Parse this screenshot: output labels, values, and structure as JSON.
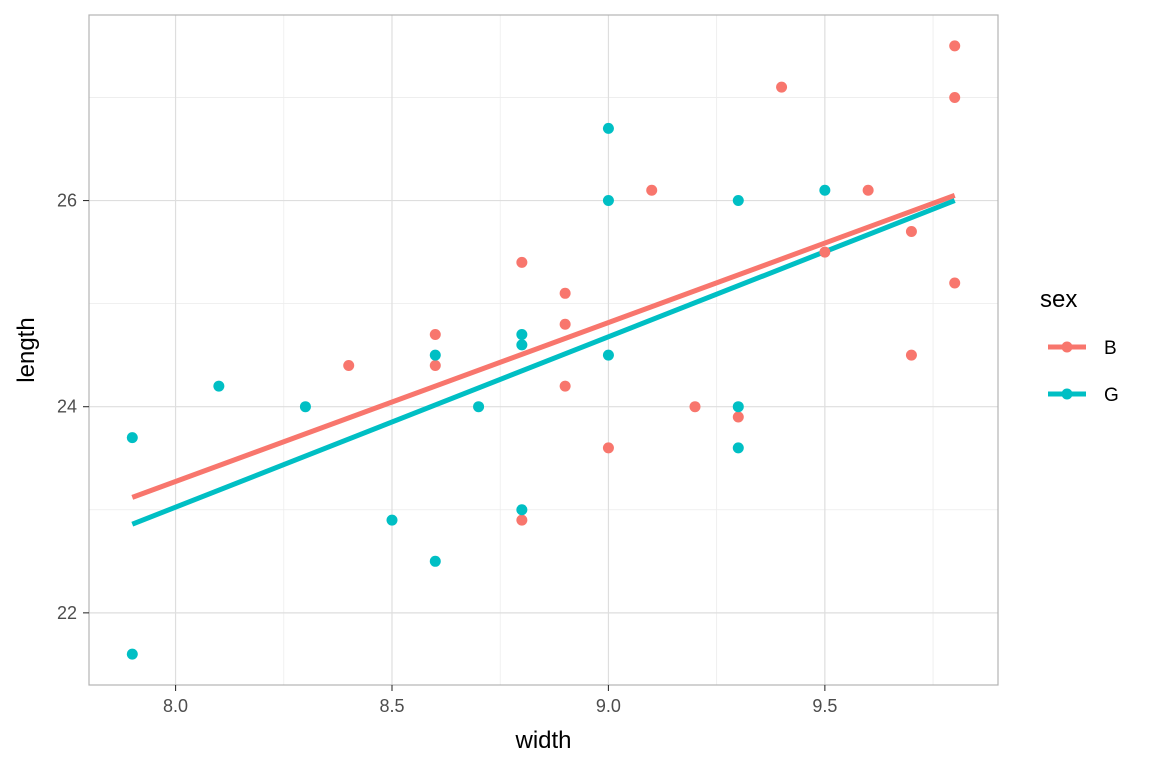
{
  "chart_data": {
    "type": "scatter",
    "title": "",
    "xlabel": "width",
    "ylabel": "length",
    "xlim": [
      7.8,
      9.9
    ],
    "ylim": [
      21.3,
      27.8
    ],
    "xticks": [
      8.0,
      8.5,
      9.0,
      9.5
    ],
    "xtick_labels": [
      "8.0",
      "8.5",
      "9.0",
      "9.5"
    ],
    "yticks": [
      22,
      24,
      26
    ],
    "ytick_labels": [
      "22",
      "24",
      "26"
    ],
    "grid": true,
    "legend": {
      "title": "sex",
      "position": "right"
    },
    "series": [
      {
        "name": "B",
        "color": "#F8766D",
        "points": [
          [
            8.4,
            24.4
          ],
          [
            8.6,
            24.7
          ],
          [
            8.6,
            24.4
          ],
          [
            8.8,
            25.4
          ],
          [
            8.8,
            22.9
          ],
          [
            8.9,
            25.1
          ],
          [
            8.9,
            24.8
          ],
          [
            8.9,
            24.2
          ],
          [
            9.0,
            23.6
          ],
          [
            9.1,
            26.1
          ],
          [
            9.2,
            24.0
          ],
          [
            9.3,
            23.9
          ],
          [
            9.4,
            27.1
          ],
          [
            9.5,
            25.5
          ],
          [
            9.6,
            26.1
          ],
          [
            9.7,
            25.7
          ],
          [
            9.7,
            24.5
          ],
          [
            9.8,
            27.5
          ],
          [
            9.8,
            27.0
          ],
          [
            9.8,
            25.2
          ]
        ],
        "fit_line": [
          [
            7.9,
            23.12
          ],
          [
            9.8,
            26.05
          ]
        ]
      },
      {
        "name": "G",
        "color": "#00BFC4",
        "points": [
          [
            7.9,
            23.7
          ],
          [
            7.9,
            21.6
          ],
          [
            8.1,
            24.2
          ],
          [
            8.3,
            24.0
          ],
          [
            8.5,
            22.9
          ],
          [
            8.6,
            24.5
          ],
          [
            8.6,
            22.5
          ],
          [
            8.7,
            24.0
          ],
          [
            8.8,
            24.7
          ],
          [
            8.8,
            24.6
          ],
          [
            8.8,
            23.0
          ],
          [
            9.0,
            26.7
          ],
          [
            9.0,
            26.0
          ],
          [
            9.0,
            24.5
          ],
          [
            9.3,
            26.0
          ],
          [
            9.3,
            24.0
          ],
          [
            9.3,
            23.6
          ],
          [
            9.5,
            26.1
          ]
        ],
        "fit_line": [
          [
            7.9,
            22.86
          ],
          [
            9.8,
            26.0
          ]
        ]
      }
    ]
  }
}
